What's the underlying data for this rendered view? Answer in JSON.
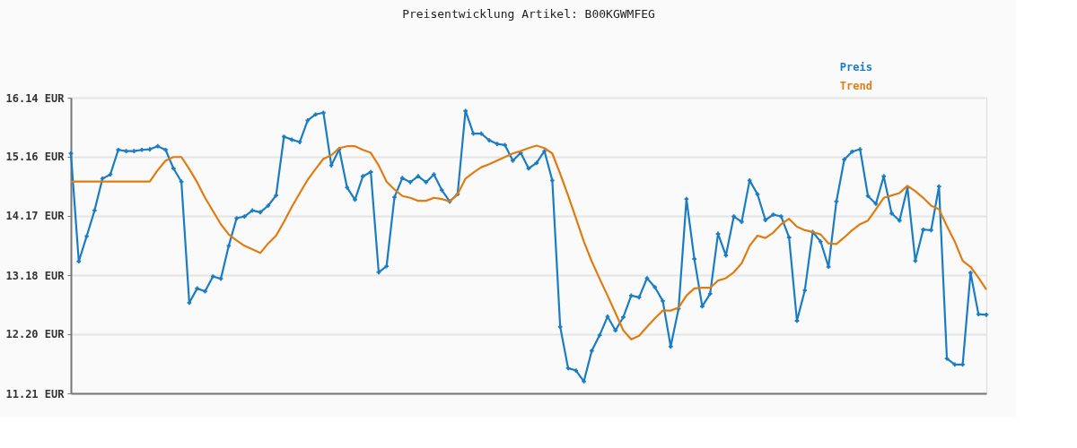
{
  "chart_data": {
    "type": "line",
    "title": "Preisentwicklung Artikel: B00KGWMFEG",
    "categories": [
      null,
      null,
      null,
      null,
      null,
      null,
      null,
      null,
      null,
      null,
      null,
      null,
      null,
      null,
      null,
      null,
      null,
      null,
      null,
      null,
      null,
      null,
      null,
      null,
      null,
      null,
      null,
      null,
      null,
      null,
      null,
      null,
      null,
      null,
      null,
      null,
      null,
      null,
      null,
      null,
      null,
      null,
      null,
      null,
      null,
      null,
      null,
      null,
      null,
      null,
      null,
      null,
      null,
      null,
      null,
      null,
      null,
      null,
      null,
      null,
      null,
      null,
      null,
      null,
      null,
      null,
      null,
      null,
      null,
      null,
      null,
      null,
      null,
      null,
      null,
      null,
      null,
      null,
      null,
      null,
      null,
      null,
      null,
      null,
      null,
      null,
      null,
      null,
      null,
      null,
      null,
      null,
      null,
      null,
      null,
      null,
      null,
      null,
      null,
      null,
      null,
      null,
      null,
      null,
      null,
      null,
      null,
      null,
      null,
      null,
      null,
      null,
      null,
      null,
      null,
      null,
      null
    ],
    "series": [
      {
        "name": "Preis",
        "color": "#1a7dc4",
        "marker": "cross",
        "values": [
          15.21,
          13.41,
          13.83,
          14.26,
          14.79,
          14.86,
          15.27,
          15.25,
          15.25,
          15.27,
          15.28,
          15.33,
          15.27,
          14.96,
          14.74,
          12.72,
          12.96,
          12.91,
          13.16,
          13.12,
          13.67,
          14.13,
          14.16,
          14.26,
          14.23,
          14.34,
          14.51,
          15.49,
          15.44,
          15.4,
          15.76,
          15.86,
          15.89,
          15.01,
          15.28,
          14.64,
          14.44,
          14.83,
          14.9,
          13.23,
          13.33,
          14.48,
          14.8,
          14.73,
          14.83,
          14.73,
          14.86,
          14.6,
          14.41,
          14.53,
          15.92,
          15.54,
          15.54,
          15.43,
          15.37,
          15.35,
          15.09,
          15.22,
          14.96,
          15.05,
          15.25,
          14.76,
          12.32,
          11.63,
          11.59,
          11.41,
          11.92,
          12.18,
          12.49,
          12.26,
          12.48,
          12.84,
          12.81,
          13.13,
          12.98,
          12.75,
          11.99,
          12.62,
          14.45,
          13.45,
          12.66,
          12.87,
          13.87,
          13.51,
          14.16,
          14.07,
          14.76,
          14.53,
          14.1,
          14.19,
          14.16,
          13.81,
          12.42,
          12.93,
          13.9,
          13.74,
          13.32,
          14.41,
          15.11,
          15.24,
          15.28,
          14.5,
          14.37,
          14.83,
          14.21,
          14.09,
          14.64,
          13.42,
          13.94,
          13.93,
          14.66,
          11.79,
          11.69,
          11.69,
          13.22,
          12.53,
          12.52
        ]
      },
      {
        "name": "Trend",
        "color": "#e07c10",
        "marker": "none",
        "values": [
          14.74,
          14.74,
          14.74,
          14.74,
          14.74,
          14.74,
          14.74,
          14.74,
          14.74,
          14.74,
          14.74,
          14.93,
          15.09,
          15.15,
          15.15,
          14.95,
          14.73,
          14.47,
          14.25,
          14.03,
          13.86,
          13.76,
          13.67,
          13.61,
          13.55,
          13.71,
          13.84,
          14.07,
          14.32,
          14.55,
          14.77,
          14.95,
          15.12,
          15.18,
          15.3,
          15.33,
          15.33,
          15.27,
          15.22,
          15.01,
          14.74,
          14.61,
          14.5,
          14.47,
          14.42,
          14.42,
          14.47,
          14.45,
          14.41,
          14.53,
          14.79,
          14.89,
          14.98,
          15.03,
          15.09,
          15.15,
          15.21,
          15.25,
          15.3,
          15.34,
          15.3,
          15.21,
          14.87,
          14.51,
          14.13,
          13.74,
          13.41,
          13.12,
          12.84,
          12.55,
          12.26,
          12.11,
          12.17,
          12.32,
          12.46,
          12.59,
          12.59,
          12.64,
          12.84,
          12.96,
          12.97,
          12.97,
          13.09,
          13.13,
          13.23,
          13.38,
          13.67,
          13.84,
          13.8,
          13.89,
          14.03,
          14.12,
          13.99,
          13.93,
          13.9,
          13.86,
          13.71,
          13.7,
          13.81,
          13.93,
          14.03,
          14.09,
          14.28,
          14.47,
          14.51,
          14.55,
          14.67,
          14.58,
          14.47,
          14.34,
          14.28,
          14.0,
          13.74,
          13.42,
          13.32,
          13.14,
          12.94
        ]
      }
    ],
    "ylim": [
      11.21,
      16.14
    ],
    "yticks": [
      {
        "value": 11.21,
        "label": "11.21 EUR"
      },
      {
        "value": 12.2,
        "label": "12.20 EUR"
      },
      {
        "value": 13.18,
        "label": "13.18 EUR"
      },
      {
        "value": 14.17,
        "label": "14.17 EUR"
      },
      {
        "value": 15.16,
        "label": "15.16 EUR"
      },
      {
        "value": 16.14,
        "label": "16.14 EUR"
      }
    ],
    "tick_labels": "y",
    "grid": "y",
    "legend": "top right",
    "line_style": "solid"
  }
}
